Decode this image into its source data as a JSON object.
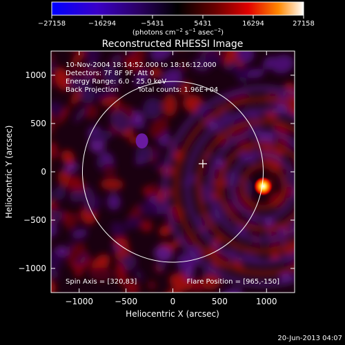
{
  "chart_data": {
    "type": "heatmap",
    "title": "Reconstructed RHESSI Image",
    "xlabel": "Heliocentric X (arcsec)",
    "ylabel": "Heliocentric Y (arcsec)",
    "xlim": [
      -1300,
      1300
    ],
    "ylim": [
      -1250,
      1250
    ],
    "x_ticks": [
      -1000,
      -500,
      0,
      500,
      1000
    ],
    "x_tick_labels": [
      "−1000",
      "−500",
      "0",
      "500",
      "1000"
    ],
    "y_ticks": [
      1000,
      500,
      0,
      -500,
      -1000
    ],
    "y_tick_labels": [
      "1000",
      "500",
      "0",
      "−500",
      "−1000"
    ],
    "colorbar": {
      "min": -27158,
      "max": 27158,
      "ticks": [
        -27158,
        -16294,
        -5431,
        5431,
        16294,
        27158
      ],
      "tick_labels": [
        "−27158",
        "−16294",
        "−5431",
        "5431",
        "16294",
        "27158"
      ],
      "unit_prefix": "(photons cm",
      "unit_sup1": "−2",
      "unit_mid": " s",
      "unit_sup2": "−1",
      "unit_mid2": " asec",
      "unit_sup3": "−2",
      "unit_suffix": ")"
    },
    "annotations": {
      "time_range": "10-Nov-2004 18:14:52.000 to 18:16:12.000",
      "detectors": "Detectors: 7F 8F 9F, Att 0",
      "energy_range": "Energy Range: 6.0 - 25.0 keV",
      "method": "Back Projection",
      "total_counts": "Total counts: 1.96E+04",
      "spin_axis": "Spin Axis = [320,83]",
      "flare_position": "Flare Position = [965,-150]"
    },
    "solar_limb_radius_arcsec": 965,
    "spin_axis_xy": [
      320,
      83
    ],
    "flare_position_xy": [
      965,
      -150
    ]
  },
  "footer": {
    "date": "20-Jun-2013 04:07"
  }
}
